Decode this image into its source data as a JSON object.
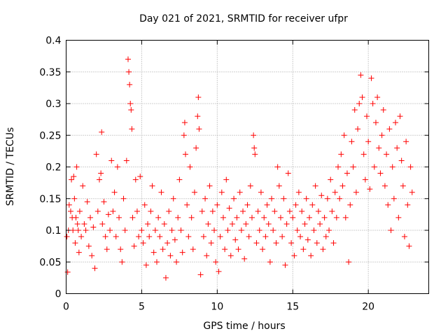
{
  "chart_data": {
    "type": "scatter",
    "title": "Day 021 of 2021, SRMTID for receiver ufpr",
    "xlabel": "GPS time / hours",
    "ylabel": "SRMTID / TECUs",
    "xlim": [
      0,
      24
    ],
    "ylim": [
      0,
      0.4
    ],
    "xticks": [
      0,
      5,
      10,
      15,
      20
    ],
    "yticks": [
      0,
      0.05,
      0.1,
      0.15,
      0.2,
      0.25,
      0.3,
      0.35,
      0.4
    ],
    "xtick_labels": [
      "0",
      "5",
      "10",
      "15",
      "20"
    ],
    "ytick_labels": [
      "0",
      "0.05",
      "0.1",
      "0.15",
      "0.2",
      "0.25",
      "0.3",
      "0.35",
      "0.4"
    ],
    "grid": true,
    "marker": "+",
    "color": "#ff0000",
    "series": [
      {
        "name": "SRMTID",
        "points": [
          [
            0.05,
            0.09
          ],
          [
            0.1,
            0.034
          ],
          [
            0.15,
            0.1
          ],
          [
            0.2,
            0.14
          ],
          [
            0.3,
            0.13
          ],
          [
            0.35,
            0.18
          ],
          [
            0.4,
            0.12
          ],
          [
            0.45,
            0.1
          ],
          [
            0.5,
            0.185
          ],
          [
            0.55,
            0.15
          ],
          [
            0.6,
            0.08
          ],
          [
            0.65,
            0.12
          ],
          [
            0.7,
            0.2
          ],
          [
            0.75,
            0.11
          ],
          [
            0.8,
            0.1
          ],
          [
            0.85,
            0.065
          ],
          [
            0.9,
            0.13
          ],
          [
            1.0,
            0.09
          ],
          [
            1.1,
            0.17
          ],
          [
            1.2,
            0.11
          ],
          [
            1.3,
            0.1
          ],
          [
            1.4,
            0.145
          ],
          [
            1.5,
            0.075
          ],
          [
            1.6,
            0.12
          ],
          [
            1.7,
            0.06
          ],
          [
            1.8,
            0.105
          ],
          [
            1.9,
            0.04
          ],
          [
            2.0,
            0.22
          ],
          [
            2.1,
            0.13
          ],
          [
            2.2,
            0.18
          ],
          [
            2.3,
            0.19
          ],
          [
            2.35,
            0.255
          ],
          [
            2.4,
            0.11
          ],
          [
            2.5,
            0.145
          ],
          [
            2.6,
            0.09
          ],
          [
            2.7,
            0.07
          ],
          [
            2.8,
            0.125
          ],
          [
            2.9,
            0.1
          ],
          [
            3.0,
            0.21
          ],
          [
            3.1,
            0.13
          ],
          [
            3.2,
            0.16
          ],
          [
            3.3,
            0.09
          ],
          [
            3.4,
            0.2
          ],
          [
            3.5,
            0.12
          ],
          [
            3.6,
            0.07
          ],
          [
            3.7,
            0.05
          ],
          [
            3.8,
            0.15
          ],
          [
            3.9,
            0.1
          ],
          [
            4.0,
            0.21
          ],
          [
            4.1,
            0.37
          ],
          [
            4.15,
            0.35
          ],
          [
            4.2,
            0.33
          ],
          [
            4.25,
            0.3
          ],
          [
            4.3,
            0.29
          ],
          [
            4.35,
            0.26
          ],
          [
            4.4,
            0.12
          ],
          [
            4.5,
            0.075
          ],
          [
            4.6,
            0.18
          ],
          [
            4.7,
            0.13
          ],
          [
            4.8,
            0.09
          ],
          [
            4.9,
            0.185
          ],
          [
            5.0,
            0.1
          ],
          [
            5.1,
            0.08
          ],
          [
            5.2,
            0.14
          ],
          [
            5.3,
            0.045
          ],
          [
            5.4,
            0.11
          ],
          [
            5.5,
            0.09
          ],
          [
            5.6,
            0.13
          ],
          [
            5.7,
            0.17
          ],
          [
            5.8,
            0.065
          ],
          [
            5.9,
            0.1
          ],
          [
            6.0,
            0.05
          ],
          [
            6.1,
            0.12
          ],
          [
            6.2,
            0.09
          ],
          [
            6.3,
            0.16
          ],
          [
            6.4,
            0.07
          ],
          [
            6.5,
            0.11
          ],
          [
            6.6,
            0.025
          ],
          [
            6.7,
            0.08
          ],
          [
            6.8,
            0.13
          ],
          [
            6.9,
            0.06
          ],
          [
            7.0,
            0.1
          ],
          [
            7.1,
            0.15
          ],
          [
            7.2,
            0.085
          ],
          [
            7.3,
            0.05
          ],
          [
            7.4,
            0.12
          ],
          [
            7.5,
            0.18
          ],
          [
            7.6,
            0.1
          ],
          [
            7.7,
            0.065
          ],
          [
            7.8,
            0.25
          ],
          [
            7.85,
            0.27
          ],
          [
            7.9,
            0.22
          ],
          [
            8.0,
            0.14
          ],
          [
            8.1,
            0.09
          ],
          [
            8.2,
            0.2
          ],
          [
            8.3,
            0.12
          ],
          [
            8.4,
            0.07
          ],
          [
            8.5,
            0.16
          ],
          [
            8.6,
            0.23
          ],
          [
            8.7,
            0.28
          ],
          [
            8.75,
            0.31
          ],
          [
            8.8,
            0.26
          ],
          [
            8.9,
            0.03
          ],
          [
            9.0,
            0.13
          ],
          [
            9.1,
            0.09
          ],
          [
            9.2,
            0.15
          ],
          [
            9.3,
            0.06
          ],
          [
            9.4,
            0.11
          ],
          [
            9.5,
            0.17
          ],
          [
            9.6,
            0.08
          ],
          [
            9.7,
            0.13
          ],
          [
            9.8,
            0.1
          ],
          [
            9.9,
            0.05
          ],
          [
            10.0,
            0.14
          ],
          [
            10.1,
            0.035
          ],
          [
            10.2,
            0.09
          ],
          [
            10.3,
            0.16
          ],
          [
            10.4,
            0.12
          ],
          [
            10.5,
            0.07
          ],
          [
            10.6,
            0.18
          ],
          [
            10.7,
            0.1
          ],
          [
            10.8,
            0.135
          ],
          [
            10.9,
            0.06
          ],
          [
            11.0,
            0.11
          ],
          [
            11.1,
            0.15
          ],
          [
            11.2,
            0.085
          ],
          [
            11.3,
            0.12
          ],
          [
            11.4,
            0.07
          ],
          [
            11.5,
            0.16
          ],
          [
            11.6,
            0.1
          ],
          [
            11.7,
            0.13
          ],
          [
            11.8,
            0.055
          ],
          [
            11.9,
            0.11
          ],
          [
            12.0,
            0.14
          ],
          [
            12.1,
            0.09
          ],
          [
            12.2,
            0.17
          ],
          [
            12.3,
            0.12
          ],
          [
            12.4,
            0.25
          ],
          [
            12.45,
            0.23
          ],
          [
            12.5,
            0.22
          ],
          [
            12.6,
            0.08
          ],
          [
            12.7,
            0.13
          ],
          [
            12.8,
            0.1
          ],
          [
            12.9,
            0.16
          ],
          [
            13.0,
            0.07
          ],
          [
            13.1,
            0.12
          ],
          [
            13.2,
            0.09
          ],
          [
            13.3,
            0.14
          ],
          [
            13.4,
            0.11
          ],
          [
            13.5,
            0.05
          ],
          [
            13.6,
            0.15
          ],
          [
            13.7,
            0.1
          ],
          [
            13.8,
            0.13
          ],
          [
            13.9,
            0.08
          ],
          [
            14.0,
            0.2
          ],
          [
            14.1,
            0.17
          ],
          [
            14.2,
            0.12
          ],
          [
            14.3,
            0.09
          ],
          [
            14.4,
            0.15
          ],
          [
            14.5,
            0.045
          ],
          [
            14.6,
            0.11
          ],
          [
            14.7,
            0.19
          ],
          [
            14.8,
            0.13
          ],
          [
            14.9,
            0.08
          ],
          [
            15.0,
            0.12
          ],
          [
            15.1,
            0.06
          ],
          [
            15.2,
            0.14
          ],
          [
            15.3,
            0.1
          ],
          [
            15.4,
            0.16
          ],
          [
            15.5,
            0.09
          ],
          [
            15.6,
            0.13
          ],
          [
            15.7,
            0.07
          ],
          [
            15.8,
            0.11
          ],
          [
            15.9,
            0.15
          ],
          [
            16.0,
            0.085
          ],
          [
            16.1,
            0.12
          ],
          [
            16.2,
            0.06
          ],
          [
            16.3,
            0.14
          ],
          [
            16.4,
            0.1
          ],
          [
            16.5,
            0.17
          ],
          [
            16.6,
            0.08
          ],
          [
            16.7,
            0.13
          ],
          [
            16.8,
            0.11
          ],
          [
            16.9,
            0.155
          ],
          [
            17.0,
            0.07
          ],
          [
            17.1,
            0.12
          ],
          [
            17.2,
            0.09
          ],
          [
            17.3,
            0.15
          ],
          [
            17.4,
            0.1
          ],
          [
            17.5,
            0.18
          ],
          [
            17.6,
            0.13
          ],
          [
            17.7,
            0.08
          ],
          [
            17.8,
            0.16
          ],
          [
            17.9,
            0.12
          ],
          [
            18.0,
            0.2
          ],
          [
            18.1,
            0.15
          ],
          [
            18.2,
            0.22
          ],
          [
            18.3,
            0.17
          ],
          [
            18.4,
            0.25
          ],
          [
            18.5,
            0.12
          ],
          [
            18.6,
            0.19
          ],
          [
            18.7,
            0.05
          ],
          [
            18.8,
            0.14
          ],
          [
            18.9,
            0.24
          ],
          [
            19.0,
            0.2
          ],
          [
            19.1,
            0.29
          ],
          [
            19.2,
            0.16
          ],
          [
            19.3,
            0.26
          ],
          [
            19.4,
            0.3
          ],
          [
            19.5,
            0.345
          ],
          [
            19.6,
            0.31
          ],
          [
            19.7,
            0.22
          ],
          [
            19.8,
            0.18
          ],
          [
            19.9,
            0.28
          ],
          [
            20.0,
            0.24
          ],
          [
            20.1,
            0.165
          ],
          [
            20.2,
            0.34
          ],
          [
            20.3,
            0.3
          ],
          [
            20.4,
            0.2
          ],
          [
            20.5,
            0.27
          ],
          [
            20.6,
            0.31
          ],
          [
            20.7,
            0.23
          ],
          [
            20.8,
            0.19
          ],
          [
            20.9,
            0.25
          ],
          [
            21.0,
            0.29
          ],
          [
            21.1,
            0.17
          ],
          [
            21.2,
            0.22
          ],
          [
            21.3,
            0.14
          ],
          [
            21.4,
            0.26
          ],
          [
            21.5,
            0.1
          ],
          [
            21.6,
            0.2
          ],
          [
            21.7,
            0.15
          ],
          [
            21.8,
            0.27
          ],
          [
            21.9,
            0.23
          ],
          [
            22.0,
            0.12
          ],
          [
            22.1,
            0.28
          ],
          [
            22.2,
            0.21
          ],
          [
            22.3,
            0.17
          ],
          [
            22.4,
            0.09
          ],
          [
            22.5,
            0.24
          ],
          [
            22.6,
            0.14
          ],
          [
            22.7,
            0.075
          ],
          [
            22.8,
            0.2
          ],
          [
            22.9,
            0.16
          ]
        ]
      }
    ]
  }
}
